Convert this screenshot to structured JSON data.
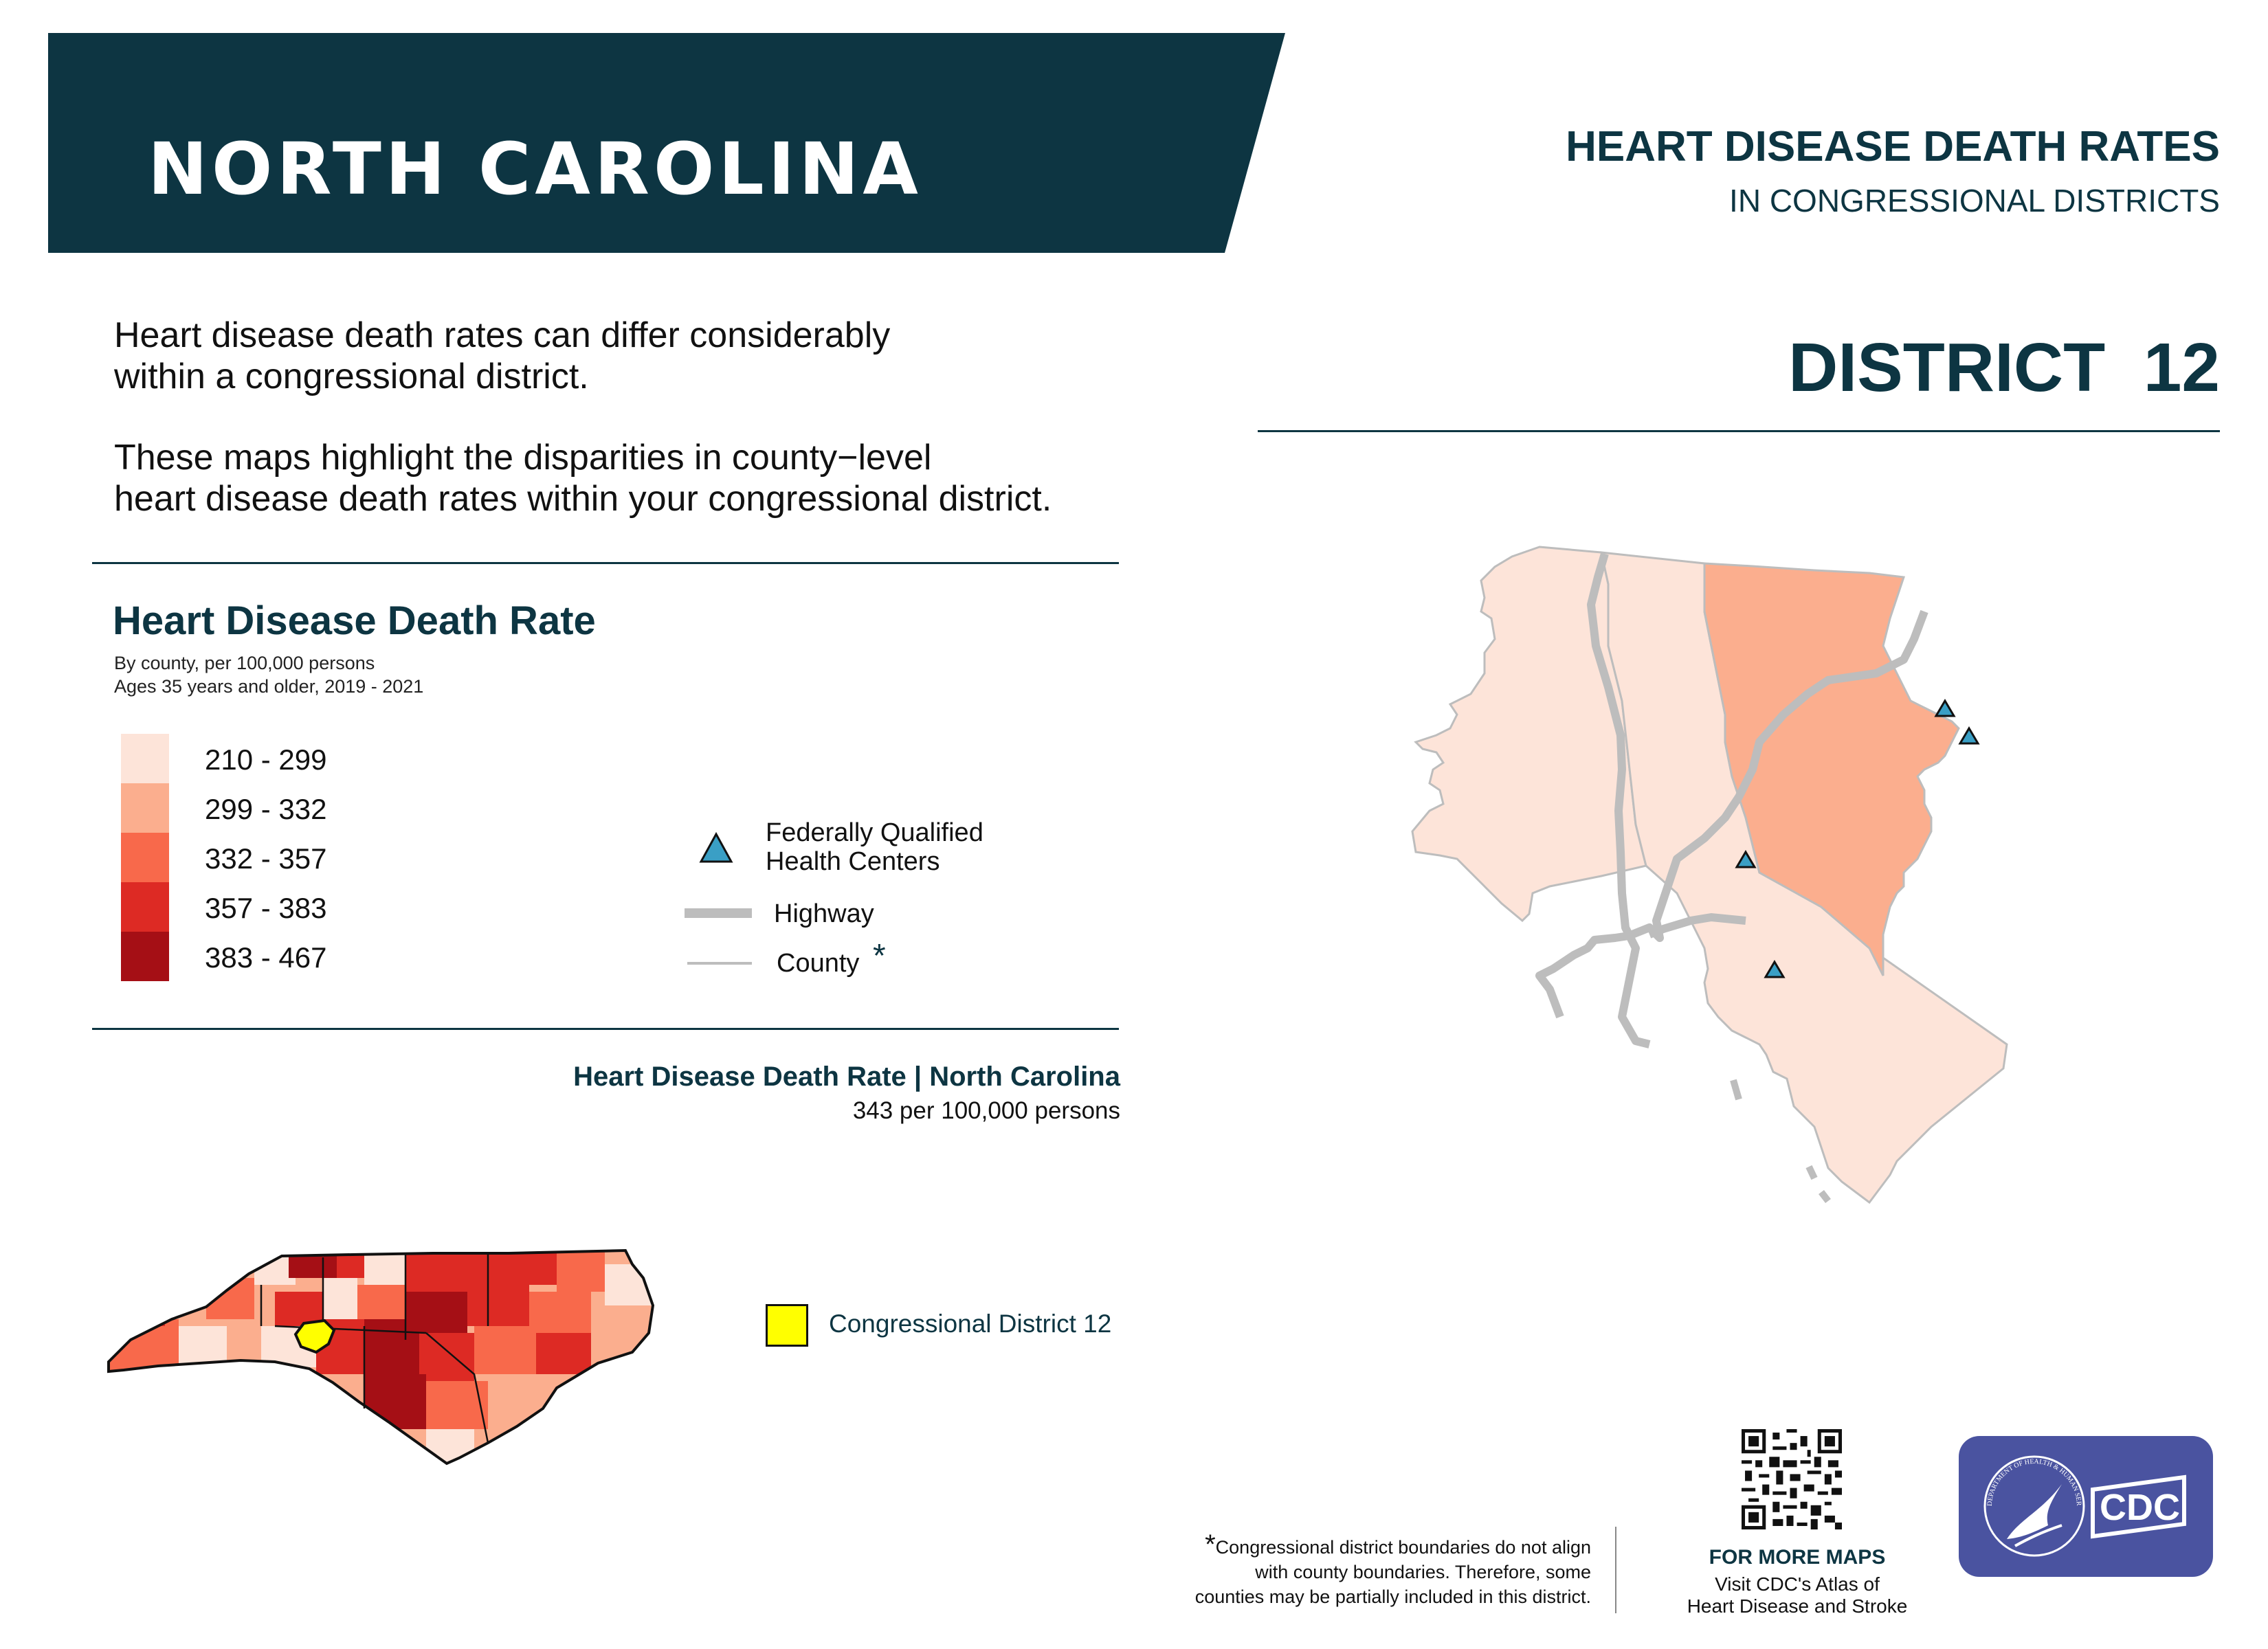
{
  "header": {
    "state": "NORTH CAROLINA",
    "title": "HEART DISEASE DEATH RATES",
    "subtitle": "IN CONGRESSIONAL DISTRICTS",
    "district": "DISTRICT  12"
  },
  "intro": {
    "paragraph1_line1": "Heart disease death rates can differ considerably",
    "paragraph1_line2": "within a congressional district.",
    "paragraph2_line1": "These maps highlight the disparities in county−level",
    "paragraph2_line2": "heart disease death rates within your congressional district."
  },
  "legend": {
    "title": "Heart Disease Death Rate",
    "note1": "By county, per 100,000 persons",
    "note2": "Ages 35 years and older, 2019 - 2021",
    "bins": [
      {
        "label": "210 - 299",
        "color": "#fde4d9"
      },
      {
        "label": "299 - 332",
        "color": "#fbae8e"
      },
      {
        "label": "332 - 357",
        "color": "#f8694b"
      },
      {
        "label": "357 - 383",
        "color": "#dd2a24"
      },
      {
        "label": "383 - 467",
        "color": "#a50f15"
      }
    ],
    "fqhc_line1": "Federally Qualified",
    "fqhc_line2": "Health Centers",
    "highway": "Highway",
    "county": "County",
    "county_star": "*"
  },
  "state_rate": {
    "title": "Heart Disease Death Rate | North Carolina",
    "value": "343 per 100,000 persons"
  },
  "state_map": {
    "district_label": "Congressional District 12",
    "highlight_color": "#ffff00"
  },
  "district_map": {
    "counties": [
      {
        "rate_bin": "210 - 299"
      },
      {
        "rate_bin": "210 - 299"
      },
      {
        "rate_bin": "299 - 332"
      }
    ],
    "fqhc_count": 4
  },
  "footer": {
    "star": "*",
    "footnote_line1": "Congressional district boundaries do not align",
    "footnote_line2": "with county boundaries. Therefore, some",
    "footnote_line3": "counties may be partially included in this district.",
    "more_maps": "FOR MORE MAPS",
    "more_maps_line1": "Visit CDC's Atlas of",
    "more_maps_line2": "Heart Disease and Stroke",
    "cdc_logo_text": "CDC",
    "hhs_seal_text": "DEPARTMENT OF HEALTH & HUMAN SERVICES USA"
  },
  "colors": {
    "navy": "#0d3542",
    "fqhc_marker": "#3a9fc5",
    "highway": "#bdbdbd",
    "cdc_badge": "#4a53a0"
  }
}
